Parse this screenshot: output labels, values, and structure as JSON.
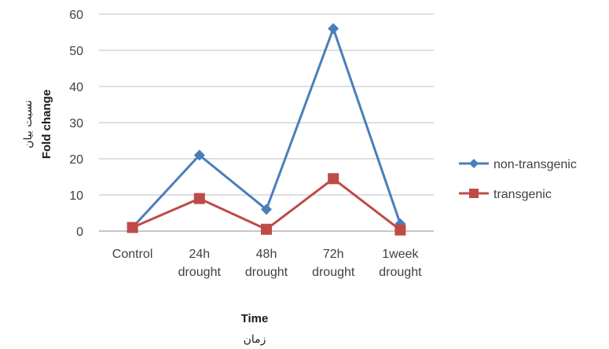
{
  "chart_data": {
    "type": "line",
    "categories": [
      "Control",
      "24h drought",
      "48h drought",
      "72h drought",
      "1week drought"
    ],
    "category_lines": [
      [
        "Control"
      ],
      [
        "24h",
        "drought"
      ],
      [
        "48h",
        "drought"
      ],
      [
        "72h",
        "drought"
      ],
      [
        "1week",
        "drought"
      ]
    ],
    "series": [
      {
        "name": "non-transgenic",
        "values": [
          1,
          21,
          6,
          56,
          2
        ],
        "color": "#4a7ebb",
        "marker": "diamond"
      },
      {
        "name": "transgenic",
        "values": [
          1,
          9,
          0.5,
          14.5,
          0.3
        ],
        "color": "#be4b48",
        "marker": "square"
      }
    ],
    "yticks": [
      0,
      10,
      20,
      30,
      40,
      50,
      60
    ],
    "ylim": [
      0,
      60
    ],
    "xlabel": "Time",
    "xlabel_sub": "زمان",
    "ylabel": "Fold change",
    "ylabel_sub": "نسبت بیان",
    "grid": true,
    "legend_position": "right"
  }
}
